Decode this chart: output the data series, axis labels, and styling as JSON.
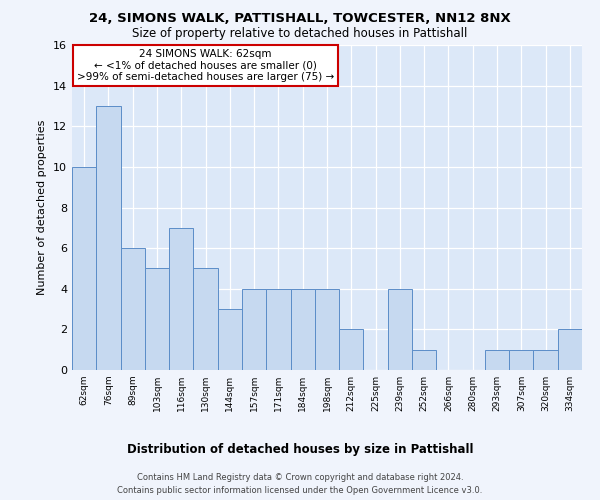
{
  "title1": "24, SIMONS WALK, PATTISHALL, TOWCESTER, NN12 8NX",
  "title2": "Size of property relative to detached houses in Pattishall",
  "xlabel": "Distribution of detached houses by size in Pattishall",
  "ylabel": "Number of detached properties",
  "categories": [
    "62sqm",
    "76sqm",
    "89sqm",
    "103sqm",
    "116sqm",
    "130sqm",
    "144sqm",
    "157sqm",
    "171sqm",
    "184sqm",
    "198sqm",
    "212sqm",
    "225sqm",
    "239sqm",
    "252sqm",
    "266sqm",
    "280sqm",
    "293sqm",
    "307sqm",
    "320sqm",
    "334sqm"
  ],
  "values": [
    10,
    13,
    6,
    5,
    7,
    5,
    3,
    4,
    4,
    4,
    4,
    2,
    0,
    4,
    1,
    0,
    0,
    1,
    1,
    1,
    2
  ],
  "bar_color": "#c6d9f0",
  "bar_edge_color": "#5b8dc8",
  "annotation_text": "24 SIMONS WALK: 62sqm\n← <1% of detached houses are smaller (0)\n>99% of semi-detached houses are larger (75) →",
  "annotation_box_color": "#ffffff",
  "annotation_box_edge": "#cc0000",
  "footer1": "Contains HM Land Registry data © Crown copyright and database right 2024.",
  "footer2": "Contains public sector information licensed under the Open Government Licence v3.0.",
  "ylim": [
    0,
    16
  ],
  "yticks": [
    0,
    2,
    4,
    6,
    8,
    10,
    12,
    14,
    16
  ],
  "background_color": "#dce8f8",
  "fig_background": "#f0f4fc",
  "grid_color": "#ffffff"
}
